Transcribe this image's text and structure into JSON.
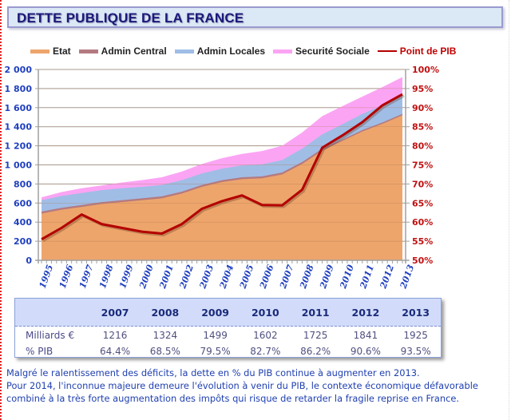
{
  "header": {
    "title": "DETTE PUBLIQUE DE LA FRANCE"
  },
  "colors": {
    "etat": "#eda56c",
    "admin_central": "#b47a80",
    "admin_locales": "#a0bde6",
    "securite_sociale": "#fba4f4",
    "point_pib": "#b40000",
    "left_axis_text": "#2040c0",
    "right_axis_text": "#c01010",
    "title_text": "#1a1a7a",
    "comment_text": "#2040b0"
  },
  "chart_data": {
    "type": "area",
    "title": "DETTE PUBLIQUE DE LA FRANCE",
    "xlabel": "",
    "ylabel": "",
    "y2label": "",
    "grid": true,
    "legend_position": "top",
    "x": [
      1995,
      1996,
      1997,
      1998,
      1999,
      2000,
      2001,
      2002,
      2003,
      2004,
      2005,
      2006,
      2007,
      2008,
      2009,
      2010,
      2011,
      2012,
      2013
    ],
    "x_tick_labels": [
      "1995",
      "1996",
      "1997",
      "1998",
      "1999",
      "2000",
      "2001",
      "2002",
      "2003",
      "2004",
      "2005",
      "2006",
      "2007",
      "2008",
      "2009",
      "2010",
      "2011",
      "2012",
      "2013"
    ],
    "ylim": [
      0,
      2000
    ],
    "y_ticks": [
      0,
      200,
      400,
      600,
      800,
      1000,
      1200,
      1400,
      1600,
      1800,
      2000
    ],
    "y_tick_labels": [
      "0",
      "200",
      "400",
      "600",
      "800",
      "1 000",
      "1 200",
      "1 400",
      "1 600",
      "1 800",
      "2 000"
    ],
    "y2lim": [
      50,
      100
    ],
    "y2_ticks": [
      50,
      55,
      60,
      65,
      70,
      75,
      80,
      85,
      90,
      95,
      100
    ],
    "y2_tick_labels": [
      "50%",
      "55%",
      "60%",
      "65%",
      "70%",
      "75%",
      "80%",
      "85%",
      "90%",
      "95%",
      "100%"
    ],
    "stacked": true,
    "series": [
      {
        "name": "Etat",
        "type": "area",
        "axis": "left",
        "values": [
          490,
          530,
          560,
          590,
          610,
          630,
          650,
          700,
          770,
          820,
          850,
          860,
          900,
          1010,
          1150,
          1250,
          1350,
          1430,
          1520
        ]
      },
      {
        "name": "Admin Central",
        "type": "area",
        "axis": "left",
        "values": [
          20,
          20,
          20,
          20,
          20,
          20,
          20,
          20,
          20,
          20,
          20,
          20,
          20,
          20,
          20,
          15,
          15,
          15,
          15
        ]
      },
      {
        "name": "Admin Locales",
        "type": "area",
        "axis": "left",
        "values": [
          120,
          125,
          125,
          125,
          125,
          120,
          120,
          120,
          120,
          120,
          125,
          125,
          130,
          140,
          150,
          160,
          170,
          180,
          190
        ]
      },
      {
        "name": "Securité Sociale",
        "type": "area",
        "axis": "left",
        "values": [
          30,
          40,
          50,
          50,
          60,
          70,
          80,
          90,
          100,
          110,
          120,
          140,
          150,
          170,
          190,
          190,
          180,
          190,
          195
        ]
      },
      {
        "name": "Point de PIB",
        "type": "line",
        "axis": "right",
        "values": [
          55.5,
          58.5,
          62.0,
          59.5,
          58.5,
          57.5,
          57.0,
          59.5,
          63.5,
          65.5,
          67.0,
          64.5,
          64.4,
          68.5,
          79.5,
          82.7,
          86.2,
          90.6,
          93.5
        ]
      }
    ]
  },
  "table": {
    "headers": [
      "",
      "2007",
      "2008",
      "2009",
      "2010",
      "2011",
      "2012",
      "2013"
    ],
    "rows": [
      {
        "label": "Milliards €",
        "values": [
          "1216",
          "1324",
          "1499",
          "1602",
          "1725",
          "1841",
          "1925"
        ]
      },
      {
        "label": "% PIB",
        "values": [
          "64.4%",
          "68.5%",
          "79.5%",
          "82.7%",
          "86.2%",
          "90.6%",
          "93.5%"
        ]
      }
    ]
  },
  "comment": {
    "lines": [
      "Malgré le ralentissement des déficits, la dette en % du PIB continue à augmenter en 2013.",
      "Pour 2014, l'inconnue majeure demeure l'évolution à venir du PIB, le contexte économique défavorable",
      "combiné à la très forte augmentation des impôts qui risque de retarder la fragile reprise en France."
    ]
  }
}
